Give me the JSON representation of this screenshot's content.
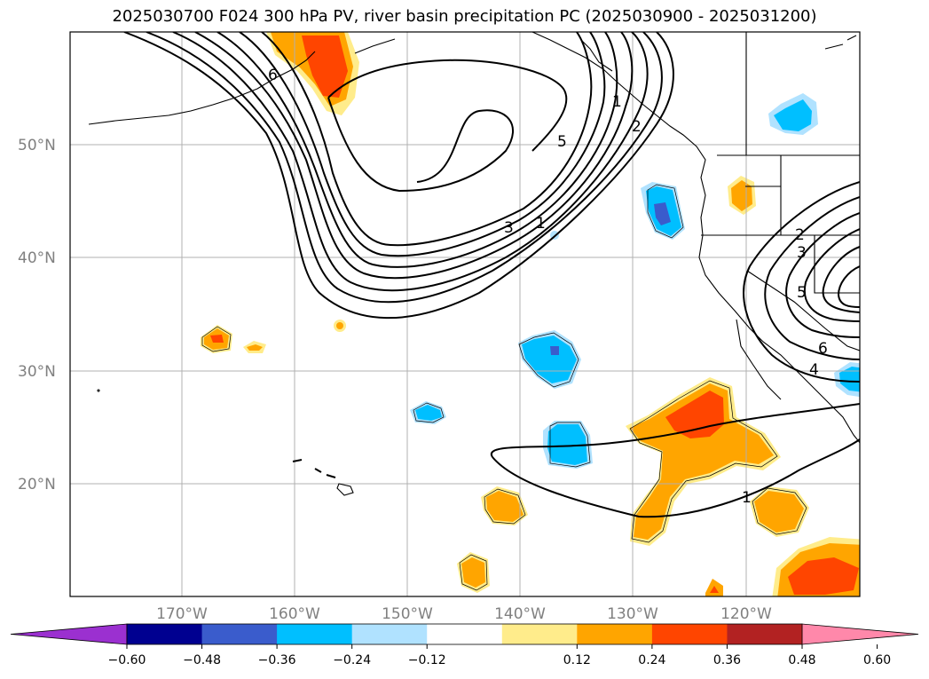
{
  "title": "2025030700 F024 300 hPa PV, river basin precipitation PC (2025030900 - 2025031200)",
  "map": {
    "lat_labels": [
      "50°N",
      "40°N",
      "30°N",
      "20°N"
    ],
    "lon_labels": [
      "170°W",
      "160°W",
      "150°W",
      "140°W",
      "130°W",
      "120°W"
    ],
    "pv_contour_labels": [
      "6",
      "5",
      "3",
      "1",
      "2",
      "1",
      "2",
      "3",
      "5",
      "6",
      "4",
      "1"
    ]
  },
  "colorbar": {
    "tick_labels": [
      "−0.60",
      "−0.48",
      "−0.36",
      "−0.24",
      "−0.12",
      "0.12",
      "0.24",
      "0.36",
      "0.48",
      "0.60"
    ],
    "colors": [
      "#9b30d0",
      "#000090",
      "#3a5ccc",
      "#00bfff",
      "#b0e2ff",
      "#ffffff",
      "#ffec8b",
      "#ffa500",
      "#ff4500",
      "#b22222",
      "#ff88aa"
    ]
  }
}
